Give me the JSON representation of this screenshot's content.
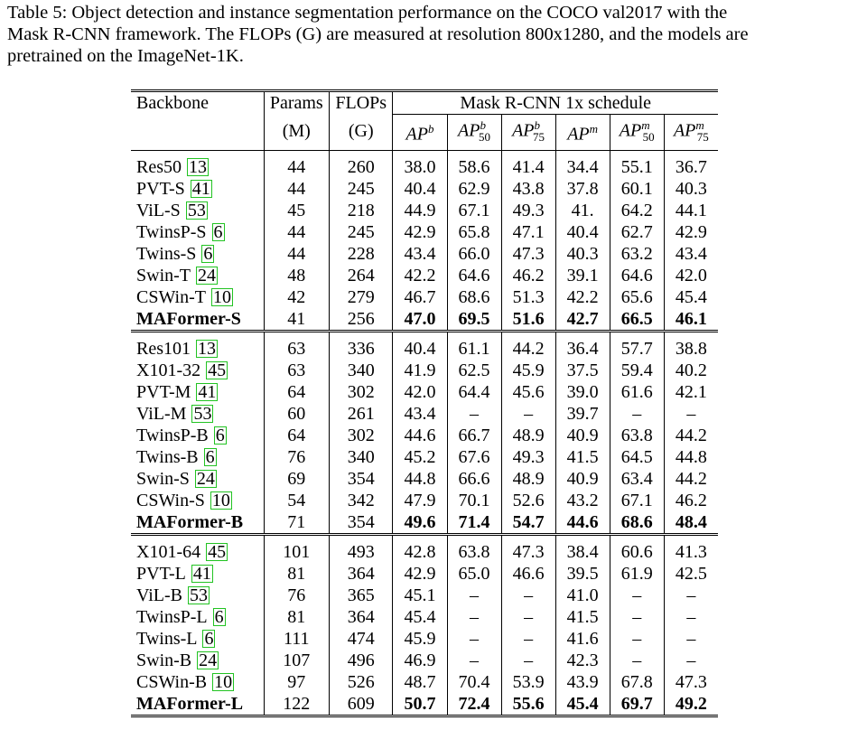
{
  "caption": {
    "line1": "Table 5: Object detection and instance segmentation performance on the COCO val2017 with the",
    "line2": "Mask R-CNN framework. The FLOPs (G) are measured at resolution 800x1280, and the models are",
    "line3": "pretrained on the ImageNet-1K."
  },
  "header": {
    "backbone": "Backbone",
    "params": "Params",
    "params_unit": "(M)",
    "flops": "FLOPs",
    "flops_unit": "(G)",
    "schedule": "Mask R-CNN 1x schedule",
    "ap_base": "AP",
    "cols": [
      {
        "sup": "b",
        "sub": ""
      },
      {
        "sup": "b",
        "sub": "50"
      },
      {
        "sup": "b",
        "sub": "75"
      },
      {
        "sup": "m",
        "sub": ""
      },
      {
        "sup": "m",
        "sub": "50"
      },
      {
        "sup": "m",
        "sub": "75"
      }
    ]
  },
  "groups": [
    [
      {
        "name": "Res50",
        "cite": "13",
        "params": "44",
        "flops": "260",
        "v": [
          "38.0",
          "58.6",
          "41.4",
          "34.4",
          "55.1",
          "36.7"
        ]
      },
      {
        "name": "PVT-S",
        "cite": "41",
        "params": "44",
        "flops": "245",
        "v": [
          "40.4",
          "62.9",
          "43.8",
          "37.8",
          "60.1",
          "40.3"
        ]
      },
      {
        "name": "ViL-S",
        "cite": "53",
        "params": "45",
        "flops": "218",
        "v": [
          "44.9",
          "67.1",
          "49.3",
          "41.",
          "64.2",
          "44.1"
        ]
      },
      {
        "name": "TwinsP-S",
        "cite": "6",
        "params": "44",
        "flops": "245",
        "v": [
          "42.9",
          "65.8",
          "47.1",
          "40.4",
          "62.7",
          "42.9"
        ]
      },
      {
        "name": "Twins-S",
        "cite": "6",
        "params": "44",
        "flops": "228",
        "v": [
          "43.4",
          "66.0",
          "47.3",
          "40.3",
          "63.2",
          "43.4"
        ]
      },
      {
        "name": "Swin-T",
        "cite": "24",
        "params": "48",
        "flops": "264",
        "v": [
          "42.2",
          "64.6",
          "46.2",
          "39.1",
          "64.6",
          "42.0"
        ]
      },
      {
        "name": "CSWin-T",
        "cite": "10",
        "params": "42",
        "flops": "279",
        "v": [
          "46.7",
          "68.6",
          "51.3",
          "42.2",
          "65.6",
          "45.4"
        ]
      },
      {
        "name": "MAFormer-S",
        "cite": "",
        "params": "41",
        "flops": "256",
        "v": [
          "47.0",
          "69.5",
          "51.6",
          "42.7",
          "66.5",
          "46.1"
        ],
        "bold": true
      }
    ],
    [
      {
        "name": "Res101",
        "cite": "13",
        "params": "63",
        "flops": "336",
        "v": [
          "40.4",
          "61.1",
          "44.2",
          "36.4",
          "57.7",
          "38.8"
        ]
      },
      {
        "name": "X101-32",
        "cite": "45",
        "params": "63",
        "flops": "340",
        "v": [
          "41.9",
          "62.5",
          "45.9",
          "37.5",
          "59.4",
          "40.2"
        ]
      },
      {
        "name": "PVT-M",
        "cite": "41",
        "params": "64",
        "flops": "302",
        "v": [
          "42.0",
          "64.4",
          "45.6",
          "39.0",
          "61.6",
          "42.1"
        ]
      },
      {
        "name": "ViL-M",
        "cite": "53",
        "params": "60",
        "flops": "261",
        "v": [
          "43.4",
          "–",
          "–",
          "39.7",
          "–",
          "–"
        ]
      },
      {
        "name": "TwinsP-B",
        "cite": "6",
        "params": "64",
        "flops": "302",
        "v": [
          "44.6",
          "66.7",
          "48.9",
          "40.9",
          "63.8",
          "44.2"
        ]
      },
      {
        "name": "Twins-B",
        "cite": "6",
        "params": "76",
        "flops": "340",
        "v": [
          "45.2",
          "67.6",
          "49.3",
          "41.5",
          "64.5",
          "44.8"
        ]
      },
      {
        "name": "Swin-S",
        "cite": "24",
        "params": "69",
        "flops": "354",
        "v": [
          "44.8",
          "66.6",
          "48.9",
          "40.9",
          "63.4",
          "44.2"
        ]
      },
      {
        "name": "CSWin-S",
        "cite": "10",
        "params": "54",
        "flops": "342",
        "v": [
          "47.9",
          "70.1",
          "52.6",
          "43.2",
          "67.1",
          "46.2"
        ]
      },
      {
        "name": "MAFormer-B",
        "cite": "",
        "params": "71",
        "flops": "354",
        "v": [
          "49.6",
          "71.4",
          "54.7",
          "44.6",
          "68.6",
          "48.4"
        ],
        "bold": true
      }
    ],
    [
      {
        "name": "X101-64",
        "cite": "45",
        "params": "101",
        "flops": "493",
        "v": [
          "42.8",
          "63.8",
          "47.3",
          "38.4",
          "60.6",
          "41.3"
        ]
      },
      {
        "name": "PVT-L",
        "cite": "41",
        "params": "81",
        "flops": "364",
        "v": [
          "42.9",
          "65.0",
          "46.6",
          "39.5",
          "61.9",
          "42.5"
        ]
      },
      {
        "name": "ViL-B",
        "cite": "53",
        "params": "76",
        "flops": "365",
        "v": [
          "45.1",
          "–",
          "–",
          "41.0",
          "–",
          "–"
        ]
      },
      {
        "name": "TwinsP-L",
        "cite": "6",
        "params": "81",
        "flops": "364",
        "v": [
          "45.4",
          "–",
          "–",
          "41.5",
          "–",
          "–"
        ]
      },
      {
        "name": "Twins-L",
        "cite": "6",
        "params": "111",
        "flops": "474",
        "v": [
          "45.9",
          "–",
          "–",
          "41.6",
          "–",
          "–"
        ]
      },
      {
        "name": "Swin-B",
        "cite": "24",
        "params": "107",
        "flops": "496",
        "v": [
          "46.9",
          "–",
          "–",
          "42.3",
          "–",
          "–"
        ]
      },
      {
        "name": "CSWin-B",
        "cite": "10",
        "params": "97",
        "flops": "526",
        "v": [
          "48.7",
          "70.4",
          "53.9",
          "43.9",
          "67.8",
          "47.3"
        ]
      },
      {
        "name": "MAFormer-L",
        "cite": "",
        "params": "122",
        "flops": "609",
        "v": [
          "50.7",
          "72.4",
          "55.6",
          "45.4",
          "69.7",
          "49.2"
        ],
        "bold": true
      }
    ]
  ],
  "colors": {
    "cite_border": "#22c322"
  }
}
